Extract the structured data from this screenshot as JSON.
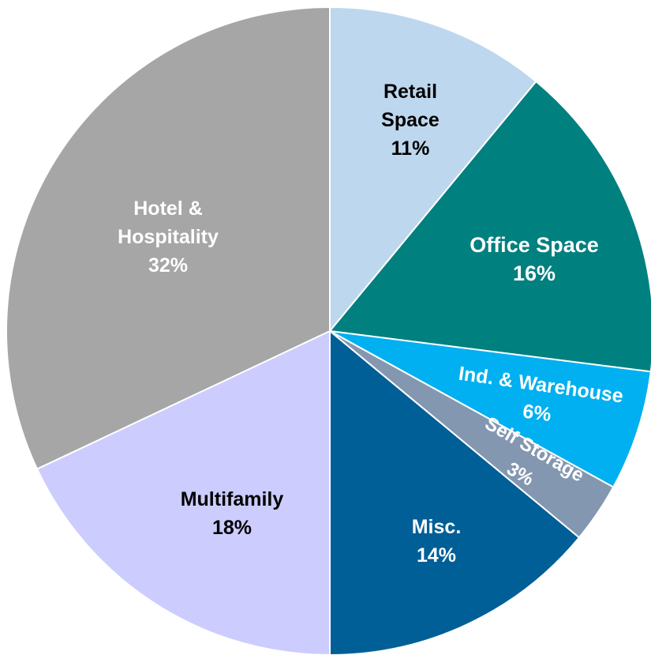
{
  "chart_data": {
    "type": "pie",
    "categories": [
      "Retail Space",
      "Office Space",
      "Ind. & Warehouse",
      "Self Storage",
      "Misc.",
      "Multifamily",
      "Hotel & Hospitality"
    ],
    "values": [
      11,
      16,
      6,
      3,
      14,
      18,
      32
    ],
    "value_labels": [
      "11%",
      "16%",
      "6%",
      "3%",
      "14%",
      "18%",
      "32%"
    ],
    "colors": [
      "#bdd7ee",
      "#00807f",
      "#00b0f0",
      "#8497b0",
      "#005f96",
      "#ccccff",
      "#a6a6a6"
    ]
  }
}
